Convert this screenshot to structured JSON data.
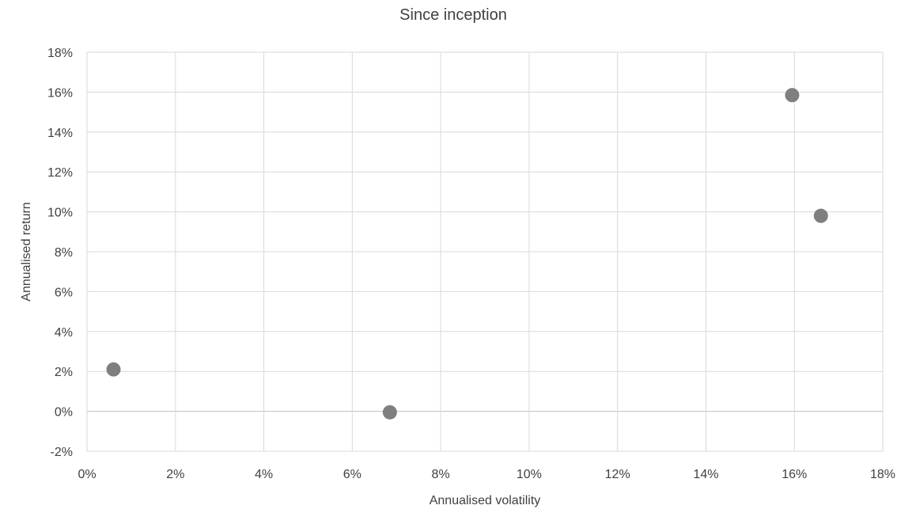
{
  "chart_data": {
    "type": "scatter",
    "title": "Since inception",
    "xlabel": "Annualised volatility",
    "ylabel": "Annualised return",
    "xlim": [
      0,
      18
    ],
    "ylim": [
      -2,
      18
    ],
    "x_ticks": [
      0,
      2,
      4,
      6,
      8,
      10,
      12,
      14,
      16,
      18
    ],
    "y_ticks": [
      -2,
      0,
      2,
      4,
      6,
      8,
      10,
      12,
      14,
      16,
      18
    ],
    "tick_format": "percent",
    "grid": true,
    "legend": "none",
    "series": [
      {
        "color": "#7f7f7f",
        "points": [
          {
            "x": 0.6,
            "y": 2.1
          },
          {
            "x": 6.85,
            "y": -0.05
          },
          {
            "x": 15.95,
            "y": 15.85
          },
          {
            "x": 16.6,
            "y": 9.8
          }
        ]
      }
    ]
  }
}
